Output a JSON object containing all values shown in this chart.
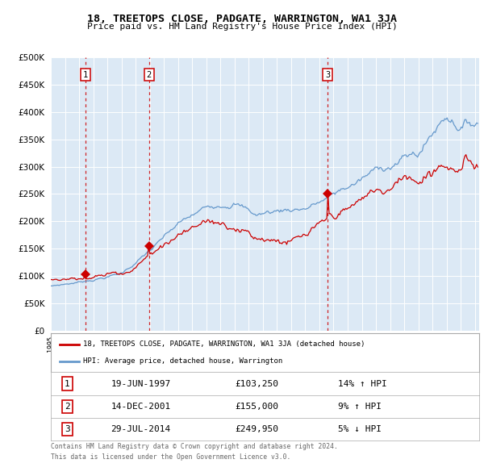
{
  "title": "18, TREETOPS CLOSE, PADGATE, WARRINGTON, WA1 3JA",
  "subtitle": "Price paid vs. HM Land Registry's House Price Index (HPI)",
  "legend_label_red": "18, TREETOPS CLOSE, PADGATE, WARRINGTON, WA1 3JA (detached house)",
  "legend_label_blue": "HPI: Average price, detached house, Warrington",
  "sales": [
    {
      "num": 1,
      "date_str": "19-JUN-1997",
      "date_x": 1997.46,
      "price": 103250,
      "pct": "14%",
      "dir": "↑"
    },
    {
      "num": 2,
      "date_str": "14-DEC-2001",
      "date_x": 2001.95,
      "price": 155000,
      "pct": "9%",
      "dir": "↑"
    },
    {
      "num": 3,
      "date_str": "29-JUL-2014",
      "date_x": 2014.58,
      "price": 249950,
      "pct": "5%",
      "dir": "↓"
    }
  ],
  "footer1": "Contains HM Land Registry data © Crown copyright and database right 2024.",
  "footer2": "This data is licensed under the Open Government Licence v3.0.",
  "bg_color": "#dce9f5",
  "grid_color": "#ffffff",
  "red_line_color": "#cc0000",
  "blue_line_color": "#6699cc",
  "ylim": [
    0,
    500000
  ],
  "xlim_start": 1995.0,
  "xlim_end": 2025.3
}
